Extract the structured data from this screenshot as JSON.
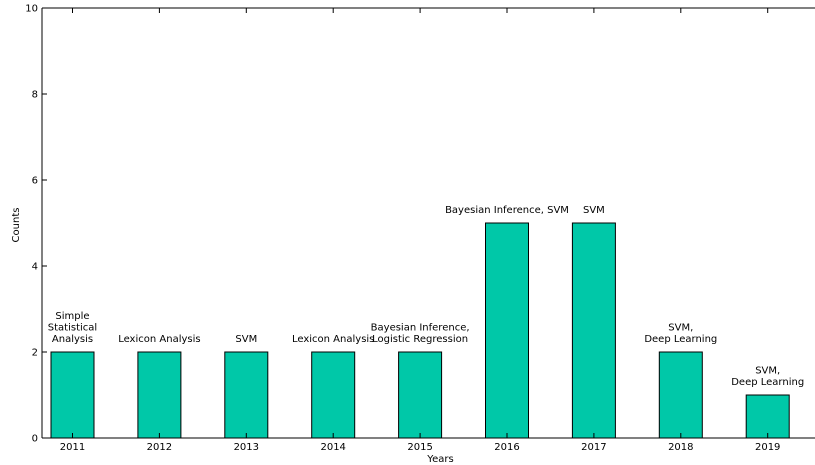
{
  "chart_data": {
    "type": "bar",
    "title": "",
    "xlabel": "Years",
    "ylabel": "Counts",
    "ylim": [
      0,
      10
    ],
    "yticks": [
      0,
      2,
      4,
      6,
      8,
      10
    ],
    "grid": false,
    "bar_color": "#00c8a8",
    "categories": [
      "2011",
      "2012",
      "2013",
      "2014",
      "2015",
      "2016",
      "2017",
      "2018",
      "2019"
    ],
    "values": [
      2,
      2,
      2,
      2,
      2,
      5,
      5,
      2,
      1
    ],
    "annotations": [
      [
        "Simple",
        "Statistical",
        "Analysis"
      ],
      [
        "Lexicon Analysis"
      ],
      [
        "SVM"
      ],
      [
        "Lexicon Analysis"
      ],
      [
        "Bayesian Inference,",
        "Logistic Regression"
      ],
      [
        "Bayesian Inference, SVM"
      ],
      [
        "SVM"
      ],
      [
        "SVM,",
        "Deep Learning"
      ],
      [
        "SVM,",
        "Deep Learning"
      ]
    ]
  }
}
